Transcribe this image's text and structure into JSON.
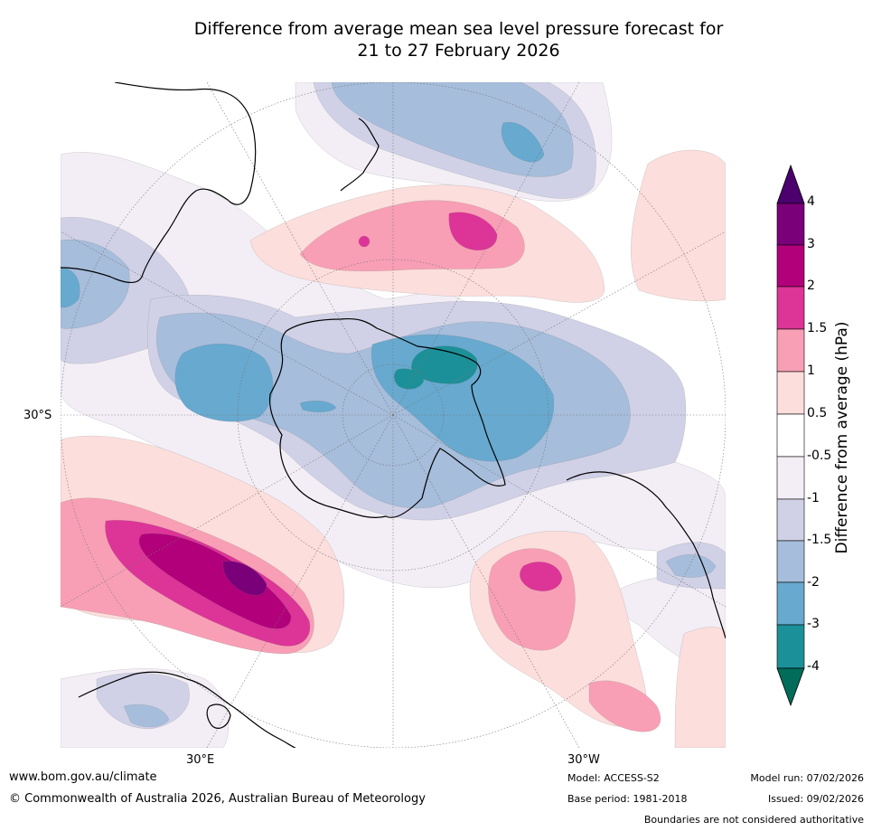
{
  "title": {
    "line1": "Difference from average mean sea level pressure forecast for",
    "line2": "21 to 27 February 2026"
  },
  "map": {
    "lat_label": "30°S",
    "lon_labels": [
      "30°E",
      "30°W"
    ]
  },
  "colorbar": {
    "label": "Difference from average (hPa)",
    "ticks": [
      "4",
      "3",
      "2",
      "1.5",
      "1",
      "0.5",
      "-0.5",
      "-1",
      "-1.5",
      "-2",
      "-3",
      "-4"
    ],
    "colors": {
      "over": "#4b006e",
      "p4": "#7a007a",
      "p3": "#b2007a",
      "p2": "#dd3497",
      "p15": "#f89fb5",
      "p1": "#fcdedc",
      "zero": "#ffffff",
      "m1": "#f3eef6",
      "m15": "#d0d1e6",
      "m2": "#a6bddb",
      "m3": "#67a9cf",
      "m4": "#1c9099",
      "under": "#016c59"
    }
  },
  "footer": {
    "website": "www.bom.gov.au/climate",
    "copyright": "© Commonwealth of Australia 2026, Australian Bureau of Meteorology",
    "model": "Model: ACCESS-S2",
    "base_period": "Base period: 1981-2018",
    "model_run": "Model run: 07/02/2026",
    "issued": "Issued: 09/02/2026",
    "boundaries": "Boundaries are not considered authoritative"
  }
}
